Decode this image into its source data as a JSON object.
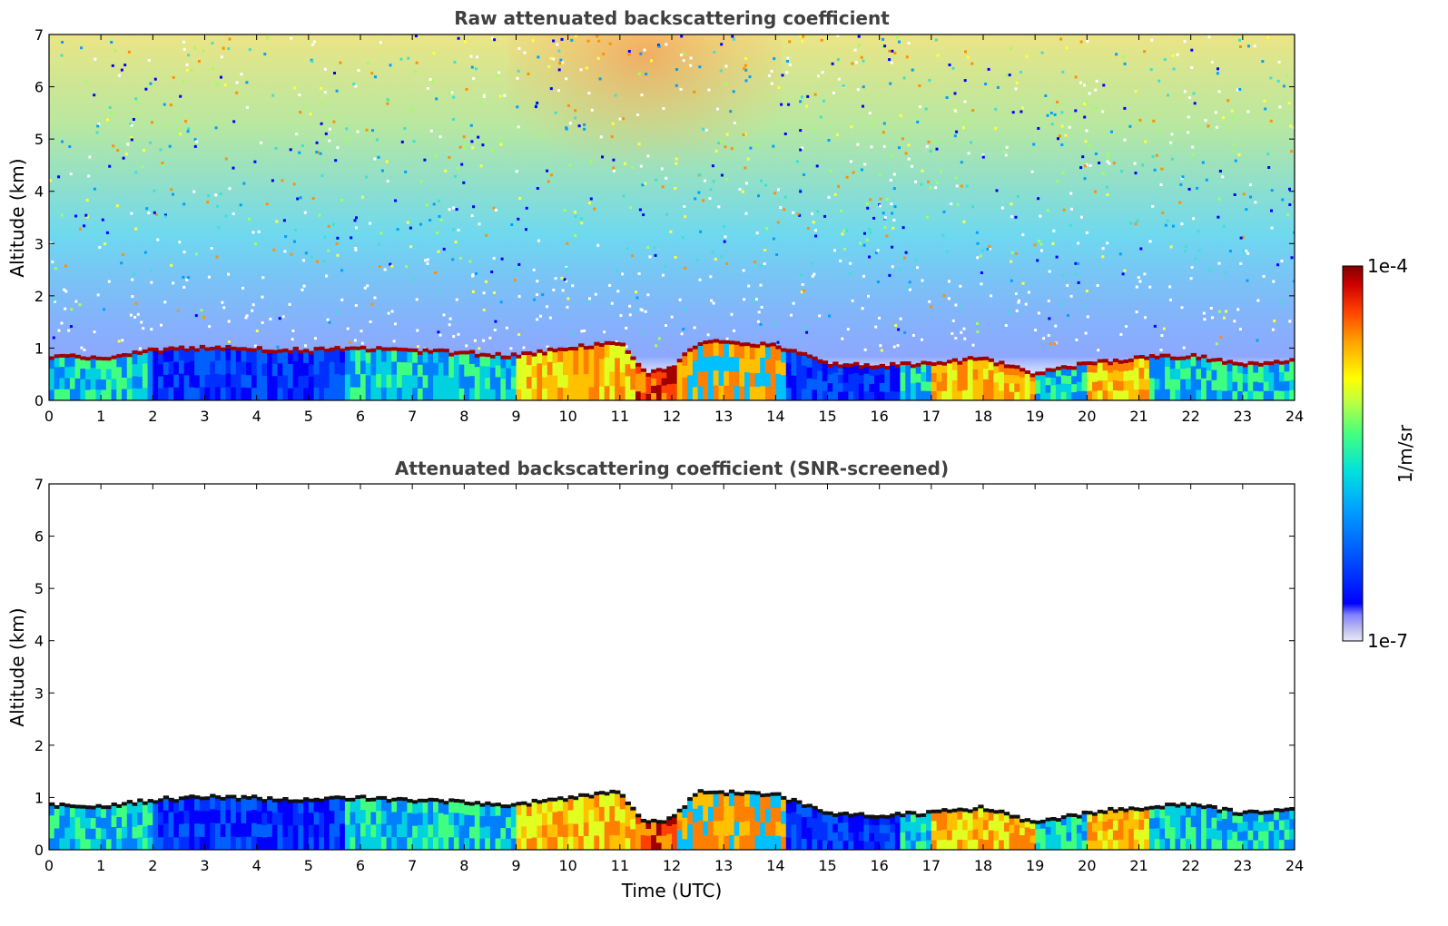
{
  "chart_data": [
    {
      "type": "heatmap",
      "title": "Raw attenuated backscattering coefficient",
      "xlabel": "",
      "ylabel": "Altitude (km)",
      "xlim": [
        0,
        24
      ],
      "ylim": [
        0,
        7
      ],
      "xticks": [
        "0",
        "1",
        "2",
        "3",
        "4",
        "5",
        "6",
        "7",
        "8",
        "9",
        "10",
        "11",
        "12",
        "13",
        "14",
        "15",
        "16",
        "17",
        "18",
        "19",
        "20",
        "21",
        "22",
        "23",
        "24"
      ],
      "yticks": [
        "0",
        "1",
        "2",
        "3",
        "4",
        "5",
        "6",
        "7"
      ],
      "boundary_layer_top_km": [
        [
          0,
          0.85
        ],
        [
          1,
          0.8
        ],
        [
          2,
          0.95
        ],
        [
          3,
          1.0
        ],
        [
          4,
          0.98
        ],
        [
          5,
          0.95
        ],
        [
          6,
          0.98
        ],
        [
          7,
          0.95
        ],
        [
          8,
          0.9
        ],
        [
          9,
          0.85
        ],
        [
          10,
          1.0
        ],
        [
          11,
          1.1
        ],
        [
          11.5,
          0.5
        ],
        [
          12,
          0.6
        ],
        [
          12.5,
          1.1
        ],
        [
          13,
          1.1
        ],
        [
          14,
          1.05
        ],
        [
          15,
          0.7
        ],
        [
          16,
          0.65
        ],
        [
          17,
          0.7
        ],
        [
          18,
          0.8
        ],
        [
          19,
          0.5
        ],
        [
          20,
          0.7
        ],
        [
          21,
          0.8
        ],
        [
          22,
          0.85
        ],
        [
          23,
          0.7
        ],
        [
          24,
          0.75
        ]
      ]
    },
    {
      "type": "heatmap",
      "title": "Attenuated backscattering coefficient (SNR-screened)",
      "xlabel": "Time (UTC)",
      "ylabel": "Altitude (km)",
      "xlim": [
        0,
        24
      ],
      "ylim": [
        0,
        7
      ],
      "xticks": [
        "0",
        "1",
        "2",
        "3",
        "4",
        "5",
        "6",
        "7",
        "8",
        "9",
        "10",
        "11",
        "12",
        "13",
        "14",
        "15",
        "16",
        "17",
        "18",
        "19",
        "20",
        "21",
        "22",
        "23",
        "24"
      ],
      "yticks": [
        "0",
        "1",
        "2",
        "3",
        "4",
        "5",
        "6",
        "7"
      ],
      "boundary_layer_top_km": [
        [
          0,
          0.85
        ],
        [
          1,
          0.8
        ],
        [
          2,
          0.95
        ],
        [
          3,
          1.0
        ],
        [
          4,
          0.98
        ],
        [
          5,
          0.95
        ],
        [
          6,
          0.98
        ],
        [
          7,
          0.95
        ],
        [
          8,
          0.9
        ],
        [
          9,
          0.85
        ],
        [
          10,
          1.0
        ],
        [
          11,
          1.1
        ],
        [
          11.5,
          0.5
        ],
        [
          12,
          0.6
        ],
        [
          12.5,
          1.1
        ],
        [
          13,
          1.1
        ],
        [
          14,
          1.05
        ],
        [
          15,
          0.7
        ],
        [
          16,
          0.65
        ],
        [
          17,
          0.7
        ],
        [
          18,
          0.8
        ],
        [
          19,
          0.5
        ],
        [
          20,
          0.7
        ],
        [
          21,
          0.8
        ],
        [
          22,
          0.85
        ],
        [
          23,
          0.7
        ],
        [
          24,
          0.75
        ]
      ]
    }
  ],
  "colorbar": {
    "label": "1/m/sr",
    "max_label": "1e-4",
    "min_label": "1e-7",
    "range": [
      1e-07,
      0.0001
    ],
    "scale": "log",
    "colormap": "jet",
    "colors": [
      "#e8e8f8",
      "#c0c0f0",
      "#8080ff",
      "#0000ff",
      "#0050ff",
      "#00a0ff",
      "#00e0e0",
      "#40ff80",
      "#c0ff40",
      "#ffff00",
      "#ffa000",
      "#ff4000",
      "#d00000",
      "#800000"
    ]
  }
}
